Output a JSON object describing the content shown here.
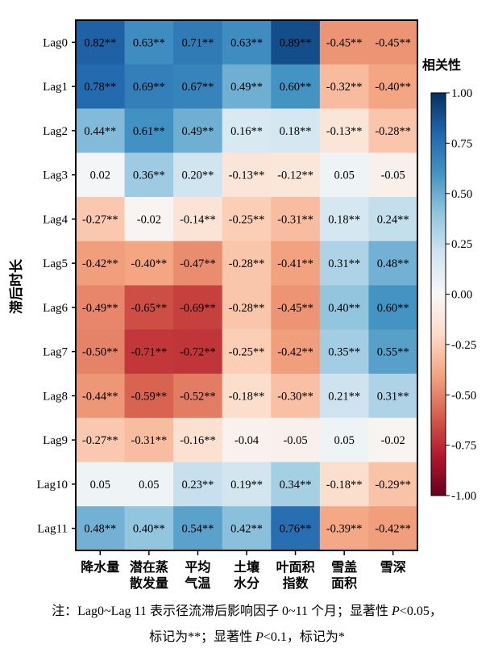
{
  "chart_data": {
    "type": "heatmap",
    "ylabel": "滞后时长",
    "xlabel": "",
    "colorbar_title": "相关性",
    "colormap": "RdBu",
    "vlim": [
      -1,
      1
    ],
    "colorbar_ticks": [
      "1.00",
      "0.75",
      "0.50",
      "0.25",
      "0.00",
      "-0.25",
      "-0.50",
      "-0.75",
      "-1.00"
    ],
    "columns": [
      "降水量",
      "潜在蒸\n散发量",
      "平均\n气温",
      "土壤\n水分",
      "叶面积\n指数",
      "雪盖\n面积",
      "雪深"
    ],
    "rows": [
      "Lag0",
      "Lag1",
      "Lag2",
      "Lag3",
      "Lag4",
      "Lag5",
      "Lag6",
      "Lag7",
      "Lag8",
      "Lag9",
      "Lag10",
      "Lag11"
    ],
    "labels": [
      [
        "0.82**",
        "0.63**",
        "0.71**",
        "0.63**",
        "0.89**",
        "-0.45**",
        "-0.45**"
      ],
      [
        "0.78**",
        "0.69**",
        "0.67**",
        "0.49**",
        "0.60**",
        "-0.32**",
        "-0.40**"
      ],
      [
        "0.44**",
        "0.61**",
        "0.49**",
        "0.16**",
        "0.18**",
        "-0.13**",
        "-0.28**"
      ],
      [
        "0.02",
        "0.36**",
        "0.20**",
        "-0.13**",
        "-0.12**",
        "0.05",
        "-0.05"
      ],
      [
        "-0.27**",
        "-0.02",
        "-0.14**",
        "-0.25**",
        "-0.31**",
        "0.18**",
        "0.24**"
      ],
      [
        "-0.42**",
        "-0.40**",
        "-0.47**",
        "-0.28**",
        "-0.41**",
        "0.31**",
        "0.48**"
      ],
      [
        "-0.49**",
        "-0.65**",
        "-0.69**",
        "-0.28**",
        "-0.45**",
        "0.40**",
        "0.60**"
      ],
      [
        "-0.50**",
        "-0.71**",
        "-0.72**",
        "-0.25**",
        "-0.42**",
        "0.35**",
        "0.55**"
      ],
      [
        "-0.44**",
        "-0.59**",
        "-0.52**",
        "-0.18**",
        "-0.30**",
        "0.21**",
        "0.31**"
      ],
      [
        "-0.27**",
        "-0.31**",
        "-0.16**",
        "-0.04",
        "-0.05",
        "0.05",
        "-0.02"
      ],
      [
        "0.05",
        "0.05",
        "0.23**",
        "0.19**",
        "0.34**",
        "-0.18**",
        "-0.29**"
      ],
      [
        "0.48**",
        "0.40**",
        "0.54**",
        "0.42**",
        "0.76**",
        "-0.39**",
        "-0.42**"
      ]
    ]
  },
  "footnote": {
    "line1_a": "注：Lag0~Lag 11 表示径流滞后影响因子 0~11 个月；显著性 ",
    "p1": "P",
    "line1_b": "<0.05，",
    "line2_a": "标记为**；显著性 ",
    "p2": "P",
    "line2_b": "<0.1，标记为*"
  }
}
